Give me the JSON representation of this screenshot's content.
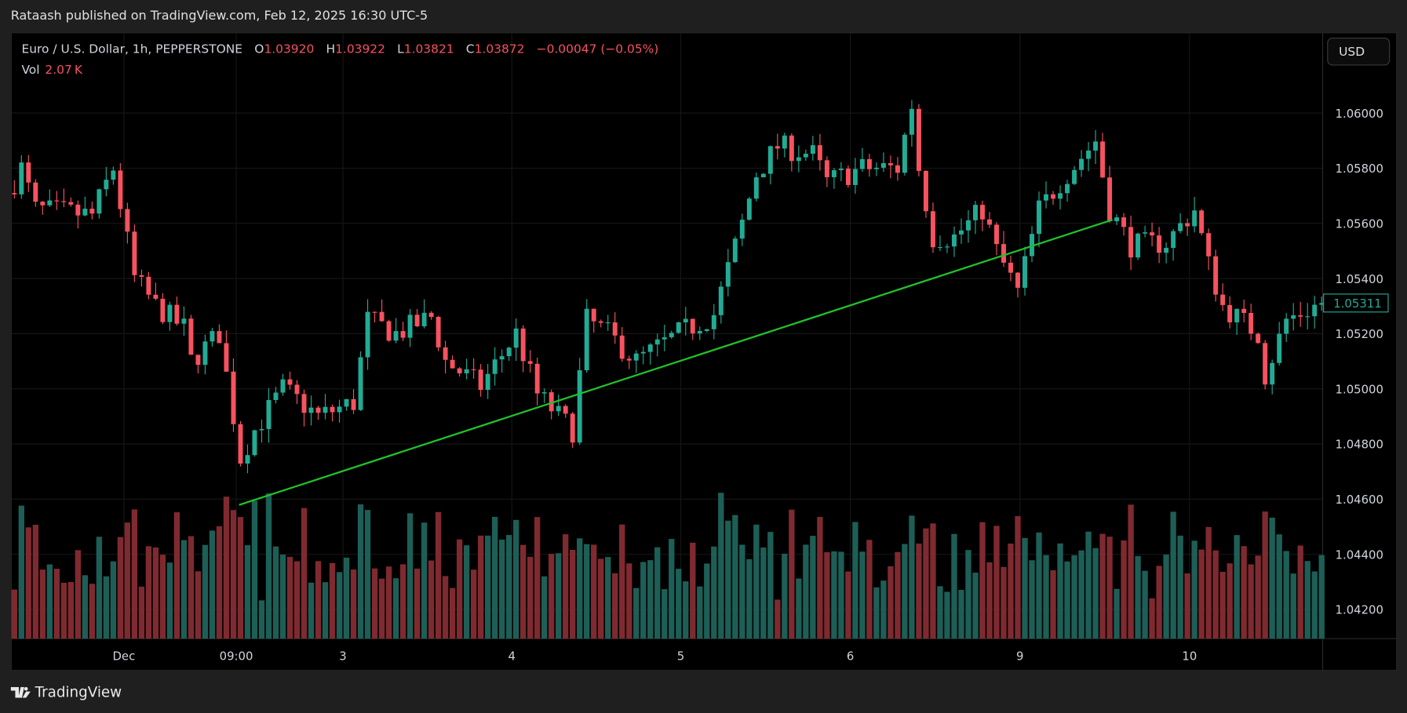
{
  "header": {
    "published": "Rataash published on TradingView.com, Feb 12, 2025 16:30 UTC-5"
  },
  "legend": {
    "symbol": "Euro / U.S. Dollar, 1h, PEPPERSTONE",
    "o_label": "O",
    "o": "1.03920",
    "h_label": "H",
    "h": "1.03922",
    "l_label": "L",
    "l": "1.03821",
    "c_label": "C",
    "c": "1.03872",
    "change": "−0.00047 (−0.05%)",
    "vol_label": "Vol",
    "vol": "2.07 K"
  },
  "currency": "USD",
  "footer": {
    "brand": "TradingView"
  },
  "colors": {
    "up": "#22ab94",
    "down": "#f7525f",
    "trend": "#22c02a",
    "background": "#000000"
  },
  "chart_data": {
    "type": "candlestick",
    "title": "Euro / U.S. Dollar, 1h, PEPPERSTONE",
    "candle_count": 186,
    "ylim": [
      1.0411,
      1.0632
    ],
    "y_ticks": [
      "1.06000",
      "1.05800",
      "1.05600",
      "1.05400",
      "1.05200",
      "1.05000",
      "1.04800",
      "1.04600",
      "1.04400",
      "1.04200"
    ],
    "y_tick_values": [
      1.06,
      1.058,
      1.056,
      1.054,
      1.052,
      1.05,
      1.048,
      1.046,
      1.044,
      1.042
    ],
    "x_ticks": [
      {
        "label": "Dec",
        "index": 15.5
      },
      {
        "label": "09:00",
        "index": 31.4
      },
      {
        "label": "3",
        "index": 46.5
      },
      {
        "label": "4",
        "index": 70.4
      },
      {
        "label": "5",
        "index": 94.3
      },
      {
        "label": "6",
        "index": 118.3
      },
      {
        "label": "9",
        "index": 142.3
      },
      {
        "label": "10",
        "index": 166.3
      }
    ],
    "last_price": "1.05311",
    "last_value": 1.05311,
    "close_path": [
      [
        0,
        1.0575
      ],
      [
        1,
        1.058
      ],
      [
        3,
        1.0565
      ],
      [
        11,
        1.0563
      ],
      [
        14,
        1.058
      ],
      [
        17,
        1.054
      ],
      [
        20,
        1.053
      ],
      [
        24,
        1.0522
      ],
      [
        25,
        1.051
      ],
      [
        29,
        1.052
      ],
      [
        32,
        1.0475
      ],
      [
        34,
        1.0485
      ],
      [
        38,
        1.05
      ],
      [
        43,
        1.049
      ],
      [
        48,
        1.0495
      ],
      [
        50,
        1.0525
      ],
      [
        54,
        1.052
      ],
      [
        59,
        1.0526
      ],
      [
        61,
        1.051
      ],
      [
        66,
        1.0501
      ],
      [
        71,
        1.052
      ],
      [
        74,
        1.0498
      ],
      [
        79,
        1.0485
      ],
      [
        81,
        1.0525
      ],
      [
        84,
        1.052
      ],
      [
        88,
        1.051
      ],
      [
        94,
        1.052
      ],
      [
        99,
        1.0527
      ],
      [
        103,
        1.056
      ],
      [
        105,
        1.0578
      ],
      [
        108,
        1.0588
      ],
      [
        113,
        1.0585
      ],
      [
        115,
        1.0575
      ],
      [
        120,
        1.058
      ],
      [
        125,
        1.058
      ],
      [
        127,
        1.0603
      ],
      [
        128,
        1.058
      ],
      [
        130,
        1.0555
      ],
      [
        133,
        1.0555
      ],
      [
        137,
        1.0565
      ],
      [
        139,
        1.055
      ],
      [
        142,
        1.0535
      ],
      [
        145,
        1.0565
      ],
      [
        148,
        1.0575
      ],
      [
        153,
        1.059
      ],
      [
        155,
        1.0565
      ],
      [
        158,
        1.0552
      ],
      [
        163,
        1.0553
      ],
      [
        167,
        1.0565
      ],
      [
        169,
        1.0545
      ],
      [
        171,
        1.053
      ],
      [
        176,
        1.052
      ],
      [
        177,
        1.0505
      ],
      [
        180,
        1.0525
      ],
      [
        185,
        1.05311
      ]
    ],
    "volume_note": "Volume histogram per candle, colored by candle direction",
    "trendline": {
      "from": {
        "index": 31.8,
        "price": 1.04579
      },
      "to": {
        "index": 155.4,
        "price": 1.05613
      }
    }
  }
}
